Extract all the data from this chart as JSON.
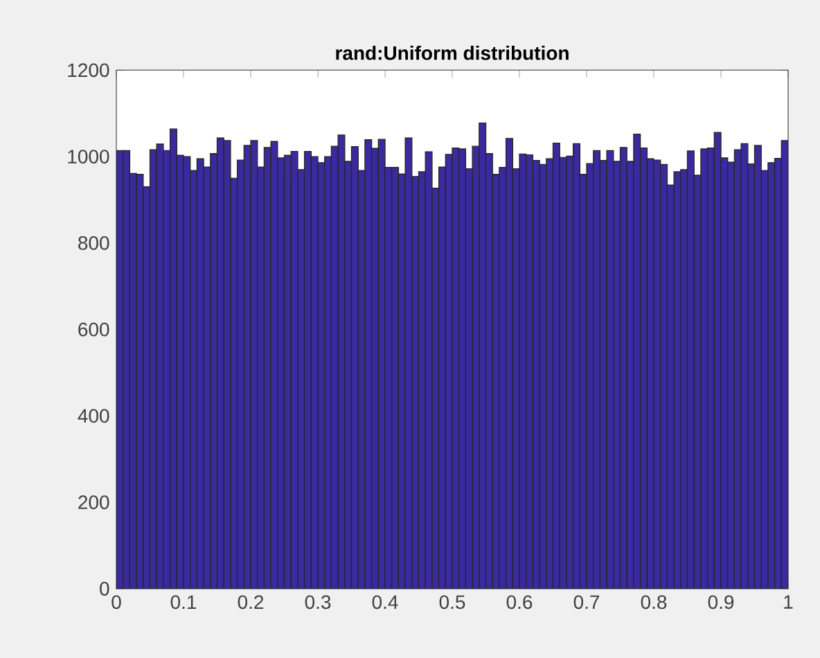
{
  "chart_data": {
    "type": "histogram",
    "title": "rand:Uniform distribution",
    "bins": [
      0,
      0.01,
      0.02,
      0.03,
      0.04,
      0.05,
      0.06,
      0.07,
      0.08,
      0.09,
      0.1,
      0.11,
      0.12,
      0.13,
      0.14,
      0.15,
      0.16,
      0.17,
      0.18,
      0.19,
      0.2,
      0.21,
      0.22,
      0.23,
      0.24,
      0.25,
      0.26,
      0.27,
      0.28,
      0.29,
      0.3,
      0.31,
      0.32,
      0.33,
      0.34,
      0.35,
      0.36,
      0.37,
      0.38,
      0.39,
      0.4,
      0.41,
      0.42,
      0.43,
      0.44,
      0.45,
      0.46,
      0.47,
      0.48,
      0.49,
      0.5,
      0.51,
      0.52,
      0.53,
      0.54,
      0.55,
      0.56,
      0.57,
      0.58,
      0.59,
      0.6,
      0.61,
      0.62,
      0.63,
      0.64,
      0.65,
      0.66,
      0.67,
      0.68,
      0.69,
      0.7,
      0.71,
      0.72,
      0.73,
      0.74,
      0.75,
      0.76,
      0.77,
      0.78,
      0.79,
      0.8,
      0.81,
      0.82,
      0.83,
      0.84,
      0.85,
      0.86,
      0.87,
      0.88,
      0.89,
      0.9,
      0.91,
      0.92,
      0.93,
      0.94,
      0.95,
      0.96,
      0.97,
      0.98,
      0.99,
      1
    ],
    "values": [
      1014,
      1014,
      961,
      959,
      930,
      1016,
      1029,
      1014,
      1064,
      1003,
      1000,
      968,
      995,
      976,
      1007,
      1043,
      1037,
      950,
      992,
      1026,
      1037,
      976,
      1021,
      1035,
      997,
      1003,
      1012,
      970,
      1012,
      1000,
      986,
      1000,
      1024,
      1050,
      989,
      1023,
      968,
      1039,
      1019,
      1040,
      975,
      975,
      960,
      1043,
      954,
      965,
      1011,
      927,
      976,
      1005,
      1020,
      1018,
      972,
      1024,
      1078,
      1007,
      959,
      975,
      1042,
      972,
      1006,
      1004,
      991,
      982,
      995,
      1031,
      998,
      1001,
      1030,
      959,
      984,
      1014,
      991,
      1014,
      989,
      1021,
      989,
      1052,
      1020,
      995,
      992,
      982,
      934,
      965,
      970,
      1013,
      957,
      1018,
      1020,
      1056,
      997,
      987,
      1016,
      1030,
      983,
      1026,
      968,
      986,
      996,
      1037
    ],
    "color": "#3b2a9e",
    "xlim": [
      0,
      1
    ],
    "ylim": [
      0,
      1200
    ],
    "xticks": [
      0,
      0.1,
      0.2,
      0.3,
      0.4,
      0.5,
      0.6,
      0.7,
      0.8,
      0.9,
      1
    ],
    "yticks": [
      0,
      200,
      400,
      600,
      800,
      1000,
      1200
    ],
    "grid": false
  }
}
